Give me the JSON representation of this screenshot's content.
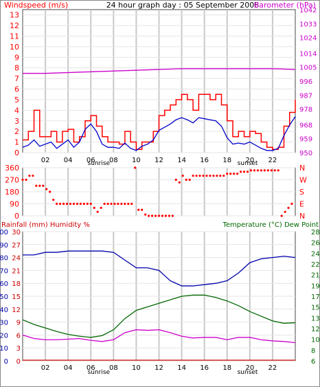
{
  "page_title": "24 hour graph day : 05 September 2008",
  "colors": {
    "wind": "#ff0000",
    "windavg": "#0000cc",
    "baro": "#cc00cc",
    "dir": "#ff0000",
    "rain": "#cc0000",
    "hum": "#0000aa",
    "temp": "#006600",
    "dew": "#cc00cc",
    "grid": "#c8c8c8"
  },
  "chart_data": [
    {
      "type": "line",
      "title": "24 hour graph day : 05 September 2008",
      "ylabel_left": "Windspeed (m/s)",
      "ylabel_right": "Barometer (hPa)",
      "x_ticks": [
        "02",
        "04",
        "06",
        "08",
        "10",
        "12",
        "14",
        "16",
        "18",
        "20",
        "22"
      ],
      "x_annotations": [
        "sunrise",
        "sunset"
      ],
      "y_ticks_left": [
        "0",
        "1",
        "2",
        "3",
        "4",
        "5",
        "6",
        "7",
        "8",
        "9",
        "10",
        "11",
        "12",
        "13"
      ],
      "y_ticks_right": [
        "950",
        "959",
        "968",
        "978",
        "987",
        "996",
        "1005",
        "1014",
        "1024",
        "1033",
        "1042"
      ],
      "ylim_left": [
        0,
        13.5
      ],
      "ylim_right": [
        950,
        1042
      ],
      "series": [
        {
          "name": "Windspeed (m/s)",
          "role": "gust",
          "x": [
            0,
            0.5,
            1,
            1.5,
            2,
            2.5,
            3,
            3.5,
            4,
            4.5,
            5,
            5.5,
            6,
            6.5,
            7,
            7.5,
            8,
            8.5,
            9,
            9.5,
            10,
            10.5,
            11,
            11.5,
            12,
            12.5,
            13,
            13.5,
            14,
            14.5,
            15,
            15.5,
            16,
            16.5,
            17,
            17.5,
            18,
            18.5,
            19,
            19.5,
            20,
            20.5,
            21,
            21.5,
            22,
            22.5,
            23,
            23.5,
            24
          ],
          "values": [
            1.2,
            2.0,
            4.0,
            1.5,
            1.5,
            2.0,
            1.0,
            2.0,
            2.2,
            1.0,
            1.5,
            3.0,
            3.5,
            2.5,
            1.5,
            1.0,
            1.0,
            0.8,
            2.0,
            1.0,
            0.3,
            1.0,
            1.0,
            2.0,
            3.5,
            4.0,
            4.5,
            5.0,
            5.5,
            5.0,
            4.0,
            5.5,
            5.5,
            5.0,
            5.5,
            4.5,
            3.0,
            1.5,
            2.0,
            1.5,
            2.0,
            1.8,
            1.0,
            0.5,
            0.3,
            0.5,
            2.5,
            3.8,
            5.0
          ]
        },
        {
          "name": "Windspeed avg",
          "role": "average",
          "x": [
            0,
            0.5,
            1,
            1.5,
            2,
            2.5,
            3,
            3.5,
            4,
            4.5,
            5,
            5.5,
            6,
            6.5,
            7,
            7.5,
            8,
            8.5,
            9,
            9.5,
            10,
            10.5,
            11,
            11.5,
            12,
            12.5,
            13,
            13.5,
            14,
            14.5,
            15,
            15.5,
            16,
            16.5,
            17,
            17.5,
            18,
            18.5,
            19,
            19.5,
            20,
            20.5,
            21,
            21.5,
            22,
            22.5,
            23,
            23.5,
            24
          ],
          "values": [
            0.5,
            0.7,
            1.2,
            0.6,
            0.8,
            1.0,
            0.4,
            0.8,
            1.2,
            0.5,
            1.0,
            2.2,
            2.7,
            2.0,
            0.8,
            0.5,
            0.5,
            0.4,
            0.9,
            0.4,
            0.2,
            0.6,
            0.8,
            1.2,
            2.1,
            2.4,
            2.7,
            3.1,
            3.3,
            3.1,
            2.8,
            3.3,
            3.2,
            3.1,
            3.0,
            2.5,
            1.4,
            0.8,
            0.9,
            0.8,
            1.0,
            0.7,
            0.4,
            0.2,
            0.2,
            0.4,
            1.6,
            2.6,
            3.4
          ]
        },
        {
          "name": "Barometer (hPa)",
          "role": "baro",
          "axis": "right",
          "x": [
            0,
            2,
            4,
            6,
            8,
            10,
            12,
            14,
            16,
            18,
            20,
            22,
            24
          ],
          "values": [
            1001,
            1001,
            1001.5,
            1002,
            1002.5,
            1003,
            1003.5,
            1004,
            1004,
            1004,
            1004,
            1004,
            1003.5
          ]
        }
      ]
    },
    {
      "type": "scatter",
      "ylabel_left": "360",
      "y_ticks_left": [
        "0",
        "90",
        "180",
        "270",
        "360"
      ],
      "y_ticks_right": [
        "N",
        "E",
        "S",
        "W",
        "N"
      ],
      "ylim": [
        0,
        360
      ],
      "series": [
        {
          "name": "Wind direction",
          "x": [
            0,
            0.3,
            0.6,
            0.9,
            1.2,
            1.5,
            1.8,
            2.1,
            2.4,
            2.7,
            3,
            3.3,
            3.6,
            3.9,
            4.2,
            4.5,
            4.8,
            5.1,
            5.4,
            5.7,
            6,
            6.3,
            6.6,
            6.9,
            7.2,
            7.5,
            7.8,
            8.1,
            8.4,
            8.7,
            9,
            9.3,
            9.6,
            9.9,
            10.2,
            10.5,
            10.8,
            11.1,
            11.4,
            11.7,
            12,
            12.3,
            12.6,
            12.9,
            13.2,
            13.5,
            13.8,
            14.1,
            14.4,
            14.7,
            15,
            15.3,
            15.6,
            15.9,
            16.2,
            16.5,
            16.8,
            17.1,
            17.4,
            17.7,
            18,
            18.3,
            18.6,
            18.9,
            19.2,
            19.5,
            19.8,
            20.1,
            20.4,
            20.7,
            21,
            21.3,
            21.6,
            21.9,
            22.2,
            22.5,
            22.8,
            23.1,
            23.4,
            23.7
          ],
          "values": [
            270,
            270,
            300,
            300,
            225,
            225,
            225,
            200,
            180,
            120,
            90,
            90,
            90,
            90,
            90,
            90,
            90,
            90,
            90,
            90,
            90,
            60,
            30,
            60,
            90,
            90,
            90,
            90,
            90,
            90,
            90,
            90,
            90,
            360,
            45,
            45,
            10,
            0,
            0,
            0,
            0,
            0,
            0,
            0,
            0,
            270,
            250,
            300,
            270,
            270,
            300,
            300,
            300,
            300,
            300,
            300,
            300,
            300,
            300,
            300,
            315,
            315,
            315,
            315,
            330,
            330,
            330,
            340,
            340,
            340,
            340,
            340,
            340,
            340,
            340,
            340,
            0,
            30,
            60,
            90
          ]
        }
      ]
    },
    {
      "type": "line",
      "ylabel_left": "Rainfall (mm)  Humidity %",
      "ylabel_right": "Temperature (°C)  Dew Point",
      "x_ticks": [
        "02",
        "04",
        "06",
        "08",
        "10",
        "12",
        "14",
        "16",
        "18",
        "20",
        "22"
      ],
      "x_annotations": [
        "sunrise",
        "sunset"
      ],
      "y_ticks_rain": [
        "0",
        "3",
        "6",
        "9",
        "12",
        "15",
        "18",
        "21",
        "24",
        "27",
        "30"
      ],
      "y_ticks_humidity": [
        "0",
        "10",
        "20",
        "30",
        "40",
        "50",
        "60",
        "70",
        "80",
        "90",
        "100"
      ],
      "y_ticks_temp": [
        "6",
        "8",
        "10",
        "12",
        "13",
        "15",
        "17",
        "19",
        "21",
        "22",
        "24",
        "26",
        "28"
      ],
      "ylim_humidity": [
        0,
        100
      ],
      "ylim_temp": [
        6,
        28
      ],
      "series": [
        {
          "name": "Humidity %",
          "axis": "humidity",
          "x": [
            0,
            1,
            2,
            3,
            4,
            5,
            6,
            7,
            8,
            9,
            10,
            11,
            12,
            12.5,
            13,
            14,
            15,
            16,
            17,
            18,
            19,
            20,
            21,
            22,
            23,
            24
          ],
          "values": [
            82,
            82,
            84,
            84,
            85,
            85,
            85,
            85,
            84,
            78,
            72,
            72,
            70,
            66,
            62,
            58,
            58,
            59,
            60,
            62,
            68,
            76,
            79,
            80,
            81,
            80
          ]
        },
        {
          "name": "Temperature (°C)",
          "axis": "temp",
          "x": [
            0,
            1,
            2,
            3,
            4,
            5,
            6,
            7,
            8,
            9,
            10,
            11,
            12,
            13,
            14,
            15,
            16,
            17,
            18,
            19,
            20,
            21,
            22,
            23,
            24
          ],
          "values": [
            13.0,
            12.2,
            11.6,
            11.0,
            10.5,
            10.2,
            10.0,
            10.3,
            11.3,
            13.2,
            14.6,
            15.2,
            15.8,
            16.4,
            17.0,
            17.2,
            17.2,
            16.8,
            16.2,
            15.4,
            14.4,
            13.6,
            12.8,
            12.4,
            12.5
          ]
        },
        {
          "name": "Dew Point",
          "axis": "temp",
          "x": [
            0,
            1,
            2,
            3,
            4,
            5,
            6,
            7,
            8,
            9,
            10,
            11,
            12,
            13,
            14,
            15,
            16,
            17,
            18,
            19,
            20,
            21,
            22,
            23,
            24
          ],
          "values": [
            10.4,
            9.8,
            9.6,
            9.6,
            9.7,
            9.8,
            9.5,
            9.3,
            9.6,
            10.8,
            11.3,
            11.2,
            11.3,
            10.8,
            10.2,
            9.9,
            10.0,
            10.0,
            9.6,
            10.0,
            10.0,
            9.6,
            9.4,
            9.3,
            9.1
          ]
        },
        {
          "name": "Rainfall (mm)",
          "axis": "rain",
          "x": [
            0,
            24
          ],
          "values": [
            0,
            0
          ]
        }
      ]
    }
  ]
}
